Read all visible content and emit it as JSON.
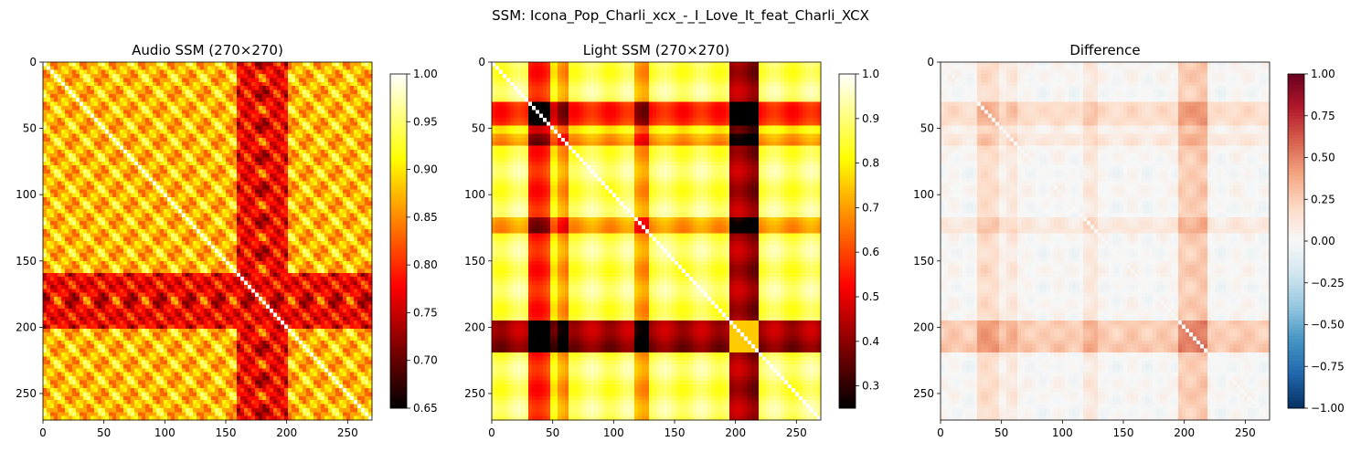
{
  "suptitle": "SSM: Icona_Pop_Charli_xcx_-_I_Love_It_feat_Charli_XCX",
  "chart_data": [
    {
      "type": "heatmap",
      "title": "Audio SSM (270×270)",
      "colormap": "hot",
      "size": 270,
      "xlim": [
        0,
        270
      ],
      "ylim": [
        270,
        0
      ],
      "xticks": [
        0,
        50,
        100,
        150,
        200,
        250
      ],
      "yticks": [
        0,
        50,
        100,
        150,
        200,
        250
      ],
      "colorbar": {
        "min": 0.65,
        "max": 1.0,
        "ticks": [
          "0.65",
          "0.70",
          "0.75",
          "0.80",
          "0.85",
          "0.90",
          "0.95",
          "1.00"
        ]
      }
    },
    {
      "type": "heatmap",
      "title": "Light SSM (270×270)",
      "colormap": "hot",
      "size": 270,
      "xlim": [
        0,
        270
      ],
      "ylim": [
        270,
        0
      ],
      "xticks": [
        0,
        50,
        100,
        150,
        200,
        250
      ],
      "yticks": [
        0,
        50,
        100,
        150,
        200,
        250
      ],
      "colorbar": {
        "min": 0.25,
        "max": 1.0,
        "ticks": [
          "0.3",
          "0.4",
          "0.5",
          "0.6",
          "0.7",
          "0.8",
          "0.9",
          "1.0"
        ]
      }
    },
    {
      "type": "heatmap",
      "title": "Difference",
      "colormap": "RdBu_r",
      "size": 270,
      "xlim": [
        0,
        270
      ],
      "ylim": [
        270,
        0
      ],
      "xticks": [
        0,
        50,
        100,
        150,
        200,
        250
      ],
      "yticks": [
        0,
        50,
        100,
        150,
        200,
        250
      ],
      "colorbar": {
        "min": -1.0,
        "max": 1.0,
        "ticks": [
          "−1.00",
          "−0.75",
          "−0.50",
          "−0.25",
          "0.00",
          "0.25",
          "0.50",
          "0.75",
          "1.00"
        ]
      }
    }
  ]
}
